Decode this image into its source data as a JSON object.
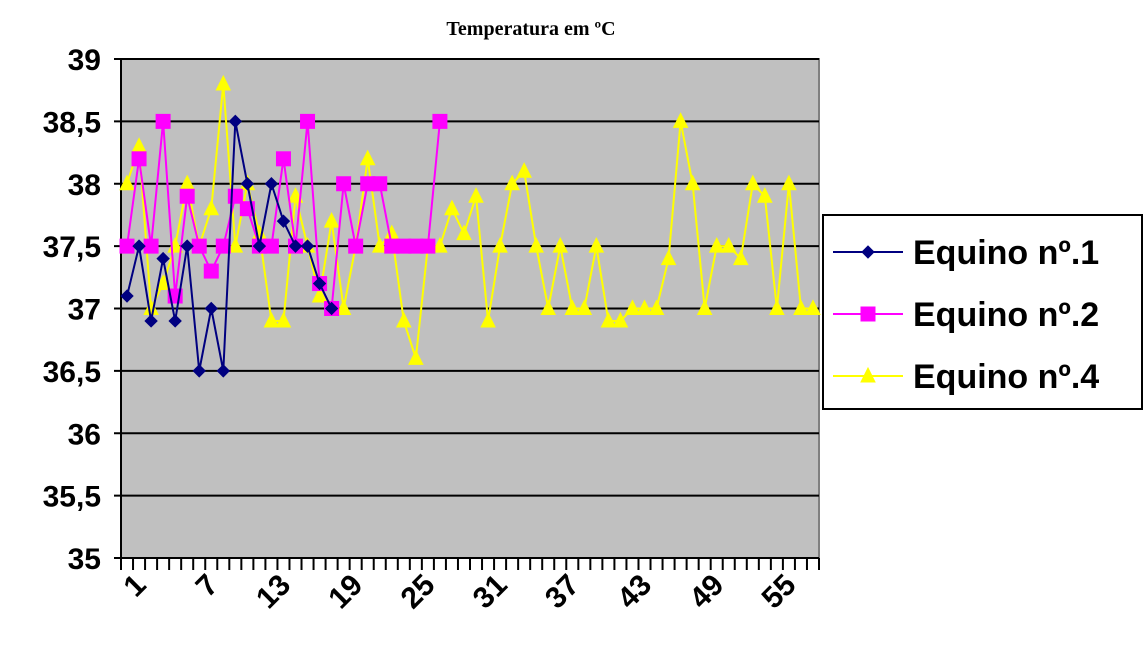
{
  "colors": {
    "plot_bg": "#c0c0c0",
    "plot_border": "#808080",
    "grid": "#000000",
    "equino1": "#000080",
    "equino2": "#ff00ff",
    "equino4": "#ffff00"
  },
  "chart_data": {
    "type": "line",
    "title": "Temperatura em ºC",
    "xlabel": "",
    "ylabel": "",
    "ylim": [
      35,
      39
    ],
    "yticks": [
      "35",
      "35,5",
      "36",
      "36,5",
      "37",
      "37,5",
      "38",
      "38,5",
      "39"
    ],
    "xticks": [
      "1",
      "7",
      "13",
      "19",
      "25",
      "31",
      "37",
      "43",
      "49",
      "55"
    ],
    "xlim": [
      1,
      58
    ],
    "grid": true,
    "legend_position": "right",
    "series": [
      {
        "name": "Equino nº.1",
        "color": "#000080",
        "marker": "diamond",
        "x": [
          1,
          2,
          3,
          4,
          5,
          6,
          7,
          8,
          9,
          10,
          11,
          12,
          13,
          14,
          15,
          16,
          17,
          18
        ],
        "values": [
          37.1,
          37.5,
          36.9,
          37.4,
          36.9,
          37.5,
          36.5,
          37.0,
          36.5,
          38.5,
          38.0,
          37.5,
          38.0,
          37.7,
          37.5,
          37.5,
          37.2,
          37.0
        ]
      },
      {
        "name": "Equino nº.2",
        "color": "#ff00ff",
        "marker": "square",
        "x": [
          1,
          2,
          3,
          4,
          5,
          6,
          7,
          8,
          9,
          10,
          11,
          12,
          13,
          14,
          15,
          16,
          17,
          18,
          19,
          20,
          21,
          22,
          23,
          24,
          25,
          26,
          27
        ],
        "values": [
          37.5,
          38.2,
          37.5,
          38.5,
          37.1,
          37.9,
          37.5,
          37.3,
          37.5,
          37.9,
          37.8,
          37.5,
          37.5,
          38.2,
          37.5,
          38.5,
          37.2,
          37.0,
          38.0,
          37.5,
          38.0,
          38.0,
          37.5,
          37.5,
          37.5,
          37.5,
          38.5
        ]
      },
      {
        "name": "Equino nº.4",
        "color": "#ffff00",
        "marker": "triangle",
        "x": [
          1,
          2,
          3,
          4,
          5,
          6,
          7,
          8,
          9,
          10,
          11,
          12,
          13,
          14,
          15,
          16,
          17,
          18,
          19,
          20,
          21,
          22,
          23,
          24,
          25,
          26,
          27,
          28,
          29,
          30,
          31,
          32,
          33,
          34,
          35,
          36,
          37,
          38,
          39,
          40,
          41,
          42,
          43,
          44,
          45,
          46,
          47,
          48,
          49,
          50,
          51,
          52,
          53,
          54,
          55,
          56,
          57,
          58
        ],
        "values": [
          38.0,
          38.3,
          37.0,
          37.2,
          37.5,
          38.0,
          37.5,
          37.8,
          38.8,
          37.5,
          38.0,
          37.6,
          36.9,
          36.9,
          37.9,
          37.5,
          37.1,
          37.7,
          37.0,
          37.5,
          38.2,
          37.5,
          37.6,
          36.9,
          36.6,
          37.5,
          37.5,
          37.8,
          37.6,
          37.9,
          36.9,
          37.5,
          38.0,
          38.1,
          37.5,
          37.0,
          37.5,
          37.0,
          37.0,
          37.5,
          36.9,
          36.9,
          37.0,
          37.0,
          37.0,
          37.4,
          38.5,
          38.0,
          37.0,
          37.5,
          37.5,
          37.4,
          38.0,
          37.9,
          37.0,
          38.0,
          37.0,
          37.0
        ]
      }
    ]
  }
}
